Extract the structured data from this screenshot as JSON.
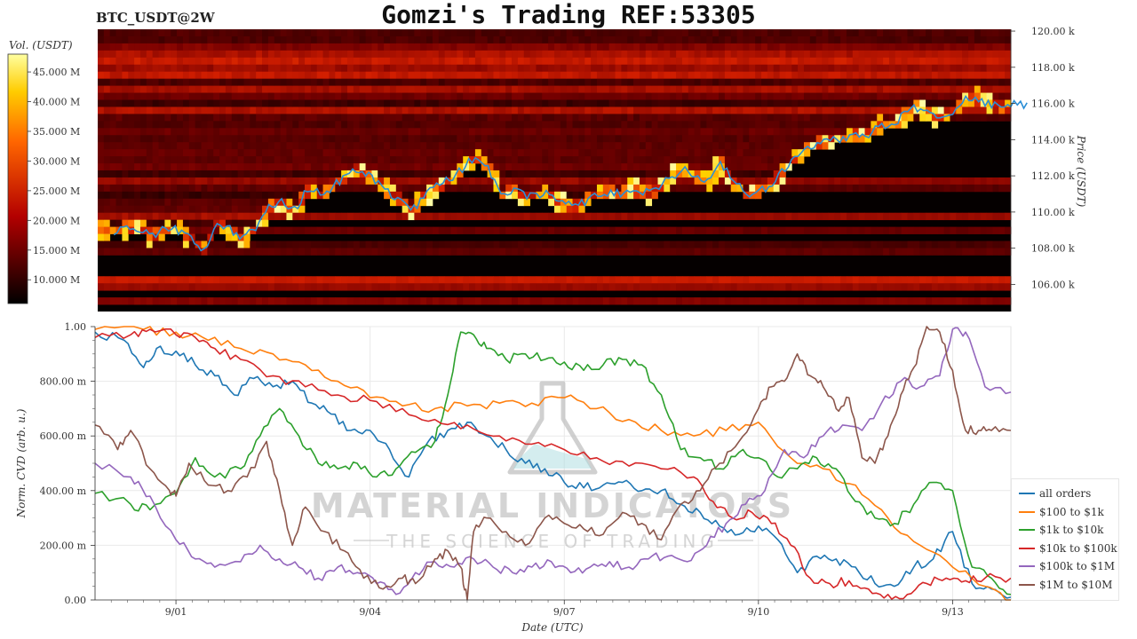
{
  "title": "Gomzi's Trading REF:53305",
  "pair": "BTC_USDT@2W",
  "watermark": {
    "main": "MATERIAL INDICATORS",
    "sub": "THE SCIENCE OF TRADING"
  },
  "colors": {
    "all_orders": "#1f77b4",
    "100_1k": "#ff7f0e",
    "1k_10k": "#2ca02c",
    "10k_100k": "#d62728",
    "100k_1M": "#9467bd",
    "1M_10M": "#8c564b",
    "price_line": "#2b8fd6"
  },
  "chart_data": [
    {
      "type": "heatmap",
      "name": "order-book-heatmap",
      "colorbar": {
        "title": "Vol. (USDT)",
        "ticks": [
          "10.000 M",
          "15.000 M",
          "20.000 M",
          "25.000 M",
          "30.000 M",
          "35.000 M",
          "40.000 M",
          "45.000 M"
        ],
        "range": [
          6,
          48
        ],
        "colorscale": "hot"
      },
      "ylabel": "Price (USDT)",
      "yticks": [
        "106.00 k",
        "108.00 k",
        "110.00 k",
        "112.00 k",
        "114.00 k",
        "116.00 k",
        "118.00 k",
        "120.00 k"
      ],
      "ylim": [
        104.5,
        120.1
      ],
      "price_series": {
        "x_days": [
          0,
          0.2,
          0.4,
          0.6,
          0.8,
          1.0,
          1.2,
          1.4,
          1.6,
          1.8,
          2.0,
          2.2,
          2.4,
          2.6,
          2.8,
          3.0,
          3.2,
          3.4,
          3.6,
          3.8,
          4.0,
          4.2,
          4.4,
          4.6,
          4.8,
          5.0,
          5.2,
          5.4,
          5.6,
          5.8,
          6.0,
          6.2,
          6.4,
          6.6,
          6.8,
          7.0,
          7.2,
          7.4,
          7.6,
          7.8,
          8.0,
          8.2,
          8.4,
          8.6,
          8.8,
          9.0,
          9.2,
          9.4,
          9.6,
          9.8,
          10.0,
          10.2,
          10.4,
          10.6,
          10.8,
          11.0,
          11.2,
          11.4,
          11.6,
          11.8,
          12.0,
          12.2,
          12.4,
          12.6,
          12.8,
          13.0,
          13.2,
          13.4,
          13.6,
          13.8,
          14.0,
          14.2
        ],
        "price": [
          108.9,
          109.2,
          109.0,
          108.7,
          109.1,
          109.0,
          108.6,
          107.8,
          109.4,
          109.0,
          108.5,
          109.2,
          110.2,
          110.6,
          110.1,
          111.2,
          111.0,
          111.4,
          112.0,
          112.3,
          111.9,
          111.2,
          110.8,
          110.0,
          110.8,
          111.4,
          111.8,
          112.4,
          113.1,
          112.5,
          111.0,
          111.1,
          110.9,
          111.0,
          110.9,
          110.4,
          110.4,
          110.8,
          111.1,
          111.0,
          111.3,
          111.0,
          111.2,
          111.8,
          112.3,
          112.1,
          111.6,
          112.7,
          111.8,
          111.0,
          111.2,
          111.5,
          112.4,
          113.0,
          113.7,
          113.8,
          114.0,
          114.2,
          114.1,
          114.6,
          114.8,
          115.2,
          115.8,
          115.5,
          115.3,
          115.6,
          116.2,
          116.2,
          116.0,
          115.8,
          116.0,
          115.9
        ]
      }
    },
    {
      "type": "line",
      "name": "cvd-chart",
      "xlabel": "Date (UTC)",
      "ylabel": "Norm. CVD (arb. u.)",
      "xticks": [
        {
          "label": "9/01",
          "day": 1
        },
        {
          "label": "9/04",
          "day": 4
        },
        {
          "label": "9/07",
          "day": 7
        },
        {
          "label": "9/10",
          "day": 10
        },
        {
          "label": "9/13",
          "day": 13
        }
      ],
      "xlim_days": [
        -0.25,
        13.9
      ],
      "yticks": [
        {
          "label": "0.00",
          "v": 0
        },
        {
          "label": "200.00 m",
          "v": 0.2
        },
        {
          "label": "400.00 m",
          "v": 0.4
        },
        {
          "label": "600.00 m",
          "v": 0.6
        },
        {
          "label": "800.00 m",
          "v": 0.8
        },
        {
          "label": "1.00",
          "v": 1.0
        }
      ],
      "ylim": [
        0,
        1.0
      ],
      "legend": "right",
      "series": [
        {
          "name": "all orders",
          "key": "all_orders",
          "x": [
            -0.25,
            0.2,
            0.5,
            0.7,
            1.0,
            1.3,
            1.6,
            1.9,
            2.2,
            2.5,
            2.8,
            3.1,
            3.4,
            3.7,
            4.0,
            4.3,
            4.6,
            4.9,
            5.2,
            5.5,
            5.8,
            6.1,
            6.4,
            6.7,
            7.0,
            7.3,
            7.6,
            7.9,
            8.2,
            8.5,
            8.8,
            9.1,
            9.4,
            9.7,
            10.0,
            10.3,
            10.6,
            10.9,
            11.2,
            11.5,
            11.8,
            12.1,
            12.4,
            12.7,
            13.0,
            13.3,
            13.6,
            13.9
          ],
          "y": [
            0.98,
            0.95,
            0.85,
            0.92,
            0.91,
            0.86,
            0.82,
            0.75,
            0.81,
            0.78,
            0.8,
            0.72,
            0.68,
            0.62,
            0.62,
            0.55,
            0.45,
            0.58,
            0.62,
            0.65,
            0.6,
            0.55,
            0.5,
            0.48,
            0.43,
            0.41,
            0.42,
            0.43,
            0.4,
            0.4,
            0.35,
            0.32,
            0.27,
            0.24,
            0.27,
            0.22,
            0.1,
            0.16,
            0.15,
            0.12,
            0.06,
            0.05,
            0.12,
            0.15,
            0.25,
            0.06,
            0.04,
            0.01
          ]
        },
        {
          "name": "$100 to $1k",
          "key": "100_1k",
          "x": [
            -0.25,
            0.5,
            1.0,
            1.5,
            2.0,
            2.5,
            3.0,
            3.5,
            4.0,
            4.5,
            5.0,
            5.5,
            6.0,
            6.5,
            7.0,
            7.5,
            8.0,
            8.5,
            9.0,
            9.5,
            10.0,
            10.5,
            11.0,
            11.5,
            12.0,
            12.5,
            13.0,
            13.5,
            13.9
          ],
          "y": [
            0.99,
            0.99,
            0.98,
            0.95,
            0.92,
            0.9,
            0.86,
            0.8,
            0.74,
            0.71,
            0.7,
            0.71,
            0.72,
            0.72,
            0.74,
            0.7,
            0.66,
            0.62,
            0.6,
            0.62,
            0.65,
            0.52,
            0.48,
            0.42,
            0.3,
            0.2,
            0.12,
            0.05,
            0.0
          ]
        },
        {
          "name": "$1k to $10k",
          "key": "1k_10k",
          "x": [
            -0.25,
            0.3,
            0.6,
            1.0,
            1.3,
            1.6,
            2.0,
            2.3,
            2.6,
            2.9,
            3.2,
            3.5,
            3.8,
            4.1,
            4.4,
            4.7,
            5.0,
            5.2,
            5.4,
            5.6,
            5.8,
            6.1,
            6.4,
            6.7,
            7.0,
            7.3,
            7.6,
            7.9,
            8.2,
            8.5,
            8.8,
            9.1,
            9.4,
            9.7,
            10.0,
            10.3,
            10.6,
            10.9,
            11.2,
            11.5,
            11.8,
            12.1,
            12.4,
            12.7,
            13.0,
            13.3,
            13.6,
            13.9
          ],
          "y": [
            0.39,
            0.35,
            0.33,
            0.39,
            0.52,
            0.45,
            0.48,
            0.6,
            0.7,
            0.6,
            0.5,
            0.48,
            0.5,
            0.45,
            0.48,
            0.54,
            0.58,
            0.75,
            0.98,
            0.97,
            0.92,
            0.88,
            0.9,
            0.88,
            0.87,
            0.84,
            0.86,
            0.88,
            0.86,
            0.75,
            0.55,
            0.52,
            0.48,
            0.54,
            0.52,
            0.45,
            0.48,
            0.52,
            0.48,
            0.36,
            0.3,
            0.28,
            0.35,
            0.43,
            0.4,
            0.12,
            0.08,
            0.02
          ]
        },
        {
          "name": "$10k to $100k",
          "key": "10k_100k",
          "x": [
            -0.25,
            0.3,
            0.6,
            1.0,
            1.3,
            1.6,
            2.0,
            2.5,
            3.0,
            3.5,
            4.0,
            4.5,
            5.0,
            5.5,
            6.0,
            6.5,
            7.0,
            7.5,
            8.0,
            8.5,
            9.0,
            9.3,
            9.6,
            9.9,
            10.2,
            10.5,
            10.8,
            11.1,
            11.4,
            11.7,
            12.0,
            12.3,
            12.6,
            12.9,
            13.2,
            13.5,
            13.9
          ],
          "y": [
            0.96,
            0.97,
            0.99,
            0.97,
            0.96,
            0.92,
            0.88,
            0.82,
            0.78,
            0.75,
            0.73,
            0.7,
            0.66,
            0.64,
            0.6,
            0.57,
            0.55,
            0.52,
            0.49,
            0.48,
            0.45,
            0.36,
            0.3,
            0.32,
            0.28,
            0.2,
            0.08,
            0.06,
            0.07,
            0.04,
            0.02,
            0.02,
            0.06,
            0.08,
            0.07,
            0.08,
            0.08
          ]
        },
        {
          "name": "$100k to $1M",
          "key": "100k_1M",
          "x": [
            -0.25,
            0.3,
            0.6,
            1.0,
            1.3,
            1.6,
            2.0,
            2.3,
            2.6,
            2.9,
            3.2,
            3.5,
            3.8,
            4.1,
            4.4,
            4.7,
            5.0,
            5.3,
            5.6,
            5.9,
            6.2,
            6.5,
            6.8,
            7.1,
            7.4,
            7.7,
            8.0,
            8.3,
            8.6,
            8.9,
            9.2,
            9.5,
            9.8,
            10.1,
            10.4,
            10.7,
            11.0,
            11.3,
            11.6,
            11.9,
            12.2,
            12.5,
            12.8,
            13.0,
            13.2,
            13.5,
            13.9
          ],
          "y": [
            0.5,
            0.45,
            0.38,
            0.22,
            0.15,
            0.12,
            0.14,
            0.2,
            0.15,
            0.12,
            0.08,
            0.12,
            0.1,
            0.06,
            0.02,
            0.1,
            0.14,
            0.12,
            0.15,
            0.12,
            0.1,
            0.12,
            0.14,
            0.1,
            0.12,
            0.14,
            0.12,
            0.15,
            0.16,
            0.14,
            0.2,
            0.28,
            0.35,
            0.4,
            0.55,
            0.52,
            0.6,
            0.64,
            0.62,
            0.72,
            0.8,
            0.78,
            0.82,
            0.99,
            0.98,
            0.78,
            0.76
          ]
        },
        {
          "name": "$1M to $10M",
          "key": "1M_10M",
          "x": [
            -0.25,
            0.1,
            0.3,
            0.6,
            0.9,
            1.0,
            1.2,
            1.5,
            1.8,
            2.1,
            2.4,
            2.6,
            2.8,
            3.0,
            3.3,
            3.6,
            3.9,
            4.2,
            4.5,
            4.7,
            5.0,
            5.2,
            5.4,
            5.5,
            5.6,
            5.8,
            6.1,
            6.4,
            6.7,
            7.0,
            7.3,
            7.6,
            7.9,
            8.2,
            8.5,
            8.8,
            9.1,
            9.4,
            9.7,
            10.0,
            10.2,
            10.4,
            10.6,
            10.8,
            11.0,
            11.2,
            11.4,
            11.6,
            11.8,
            12.0,
            12.2,
            12.4,
            12.6,
            12.8,
            13.0,
            13.2,
            13.4,
            13.6,
            13.9
          ],
          "y": [
            0.64,
            0.55,
            0.62,
            0.48,
            0.4,
            0.38,
            0.5,
            0.42,
            0.4,
            0.45,
            0.58,
            0.4,
            0.2,
            0.34,
            0.25,
            0.18,
            0.08,
            0.04,
            0.08,
            0.06,
            0.15,
            0.18,
            0.12,
            0.0,
            0.25,
            0.3,
            0.25,
            0.2,
            0.3,
            0.28,
            0.26,
            0.24,
            0.32,
            0.28,
            0.22,
            0.35,
            0.4,
            0.5,
            0.58,
            0.7,
            0.78,
            0.8,
            0.9,
            0.82,
            0.78,
            0.7,
            0.74,
            0.52,
            0.5,
            0.6,
            0.75,
            0.85,
            1.0,
            0.98,
            0.84,
            0.62,
            0.62,
            0.62,
            0.62
          ]
        }
      ]
    }
  ]
}
